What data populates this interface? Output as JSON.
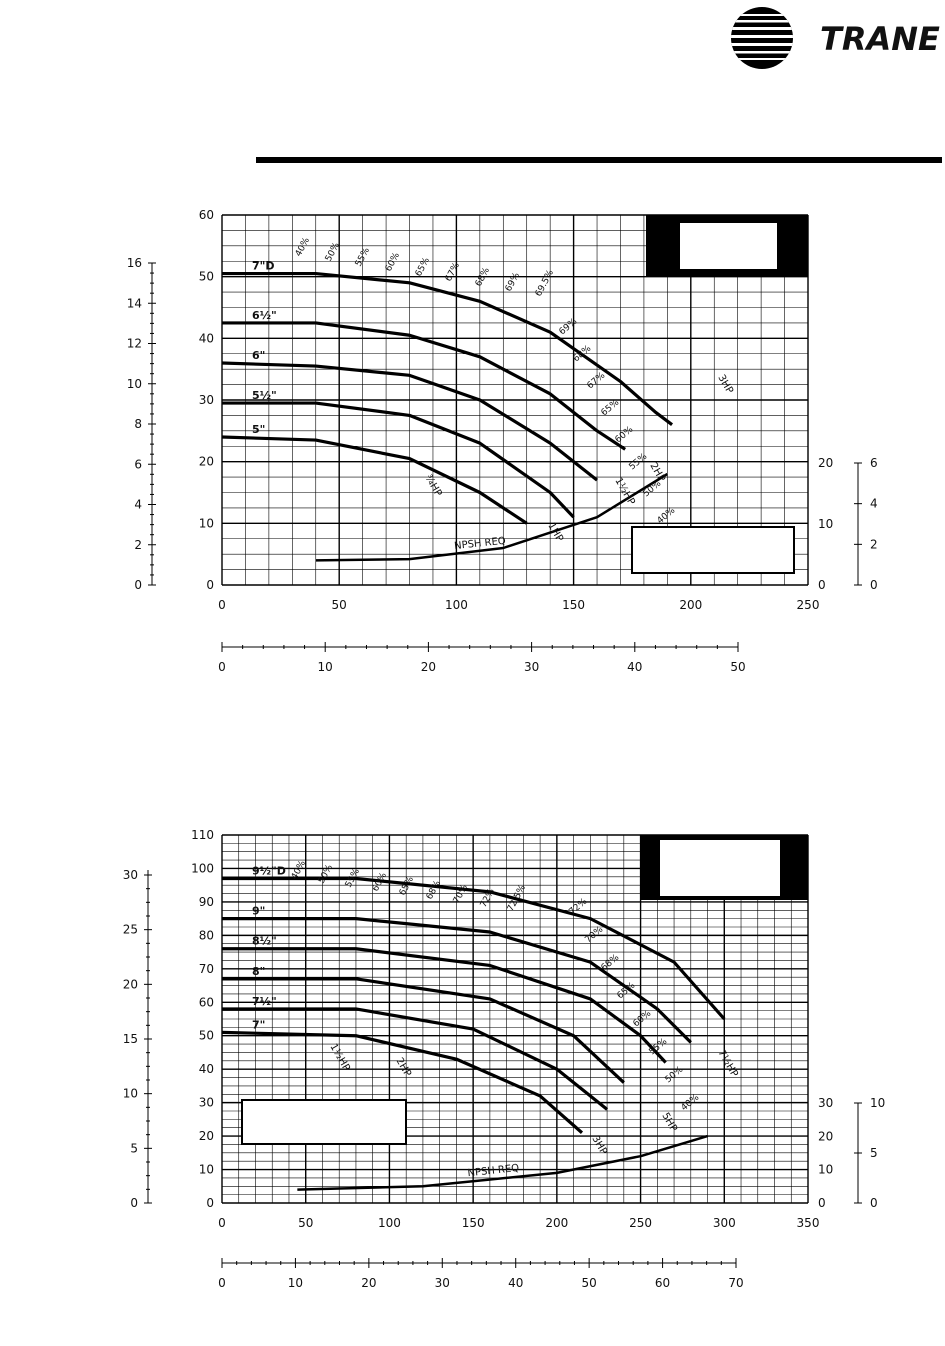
{
  "brand": {
    "name": "TRANE"
  },
  "chart_data": [
    {
      "type": "line",
      "xlim": [
        0,
        250
      ],
      "ylim": [
        0,
        60
      ],
      "x_ticks": [
        "0",
        "50",
        "100",
        "150",
        "200",
        "250"
      ],
      "y_ticks": [
        "0",
        "10",
        "20",
        "30",
        "40",
        "50",
        "60"
      ],
      "left_aux_ticks": [
        "0",
        "2",
        "4",
        "6",
        "8",
        "10",
        "12",
        "14",
        "16"
      ],
      "bottom_aux_ticks": [
        "0",
        "10",
        "20",
        "30",
        "40",
        "50"
      ],
      "npsh_right_ticks": [
        "0",
        "10",
        "20"
      ],
      "npsh_right_aux_ticks": [
        "0",
        "2",
        "4",
        "6"
      ],
      "series": [
        {
          "name": "7\"D",
          "x": [
            0,
            40,
            80,
            110,
            140,
            170,
            185,
            192
          ],
          "y": [
            50.5,
            50.5,
            49,
            46,
            41,
            33,
            28,
            26
          ]
        },
        {
          "name": "6½\"",
          "x": [
            0,
            40,
            80,
            110,
            140,
            160,
            172
          ],
          "y": [
            42.5,
            42.5,
            40.5,
            37,
            31,
            25,
            22
          ]
        },
        {
          "name": "6\"",
          "x": [
            0,
            40,
            80,
            110,
            140,
            160
          ],
          "y": [
            36,
            35.5,
            34,
            30,
            23,
            17
          ]
        },
        {
          "name": "5½\"",
          "x": [
            0,
            40,
            80,
            110,
            140,
            150
          ],
          "y": [
            29.5,
            29.5,
            27.5,
            23,
            15,
            11
          ]
        },
        {
          "name": "5\"",
          "x": [
            0,
            40,
            80,
            110,
            130
          ],
          "y": [
            24,
            23.5,
            20.5,
            15,
            10
          ]
        },
        {
          "name": "NPSH REQ",
          "x": [
            40,
            80,
            120,
            160,
            190
          ],
          "y": [
            4,
            4.2,
            6,
            11,
            18
          ]
        }
      ],
      "efficiency_labels": [
        "40%",
        "50%",
        "55%",
        "60%",
        "65%",
        "67%",
        "68%",
        "69%",
        "69.5%",
        "69%",
        "68%",
        "67%",
        "65%",
        "60%",
        "55%",
        "50%",
        "40%"
      ],
      "horsepower_labels": [
        "3HP",
        "2HP",
        "1½HP",
        "1HP",
        "¾HP"
      ],
      "annotations": [
        "NPSH REQ"
      ]
    },
    {
      "type": "line",
      "xlim": [
        0,
        350
      ],
      "ylim": [
        0,
        110
      ],
      "x_ticks": [
        "0",
        "50",
        "100",
        "150",
        "200",
        "250",
        "300",
        "350"
      ],
      "y_ticks": [
        "0",
        "10",
        "20",
        "30",
        "40",
        "50",
        "60",
        "70",
        "80",
        "90",
        "100",
        "110"
      ],
      "left_aux_ticks": [
        "0",
        "5",
        "10",
        "15",
        "20",
        "25",
        "30"
      ],
      "bottom_aux_ticks": [
        "0",
        "10",
        "20",
        "30",
        "40",
        "50",
        "60",
        "70"
      ],
      "npsh_right_ticks": [
        "0",
        "10",
        "20",
        "30"
      ],
      "npsh_right_aux_ticks": [
        "0",
        "5",
        "10"
      ],
      "series": [
        {
          "name": "9½\"D",
          "x": [
            0,
            80,
            160,
            220,
            270,
            300
          ],
          "y": [
            97,
            97,
            93,
            85,
            72,
            55
          ]
        },
        {
          "name": "9\"",
          "x": [
            0,
            80,
            160,
            220,
            260,
            280
          ],
          "y": [
            85,
            85,
            81,
            72,
            58,
            48
          ]
        },
        {
          "name": "8½\"",
          "x": [
            0,
            80,
            160,
            220,
            250,
            265
          ],
          "y": [
            76,
            76,
            71,
            61,
            50,
            42
          ]
        },
        {
          "name": "8\"",
          "x": [
            0,
            80,
            160,
            210,
            240
          ],
          "y": [
            67,
            67,
            61,
            50,
            36
          ]
        },
        {
          "name": "7½\"",
          "x": [
            0,
            80,
            150,
            200,
            230
          ],
          "y": [
            58,
            58,
            52,
            40,
            28
          ]
        },
        {
          "name": "7\"",
          "x": [
            0,
            80,
            140,
            190,
            215
          ],
          "y": [
            51,
            50,
            43,
            32,
            21
          ]
        },
        {
          "name": "NPSH REQ",
          "x": [
            45,
            120,
            200,
            250,
            290
          ],
          "y": [
            4,
            5,
            9,
            14,
            20
          ]
        }
      ],
      "efficiency_labels": [
        "40%",
        "50%",
        "55%",
        "60%",
        "65%",
        "68%",
        "70%",
        "72%",
        "72.5%",
        "72%",
        "70%",
        "68%",
        "65%",
        "60%",
        "55%",
        "50%",
        "40%"
      ],
      "horsepower_labels": [
        "7½HP",
        "5HP",
        "3HP",
        "2HP",
        "1½HP"
      ],
      "annotations": [
        "NPSH REQ"
      ]
    }
  ]
}
